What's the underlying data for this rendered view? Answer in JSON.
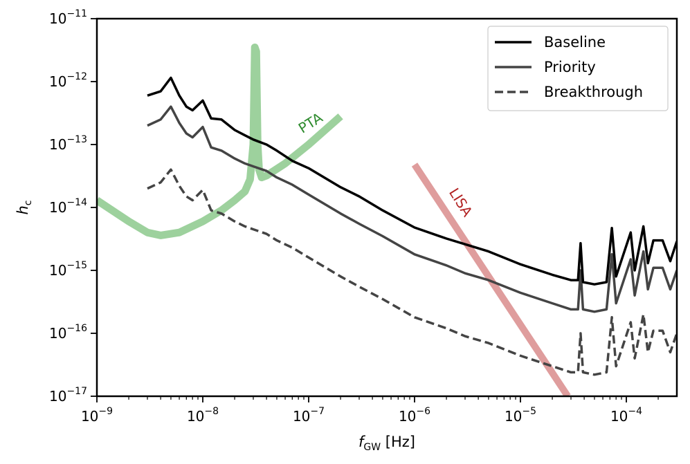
{
  "chart_data": {
    "type": "line",
    "xscale": "log",
    "yscale": "log",
    "xlim": [
      1e-09,
      0.0003
    ],
    "ylim": [
      1e-17,
      1e-11
    ],
    "xlabel": "f_GW [Hz]",
    "xlabel_main": "f",
    "xlabel_sub": "GW",
    "xlabel_unit": " [Hz]",
    "ylabel": "h_c",
    "ylabel_main": "h",
    "ylabel_sub": "c",
    "grid": false,
    "legend_position": "top-right",
    "x_ticks": [
      {
        "base": "10",
        "exp": "−9",
        "value": 1e-09
      },
      {
        "base": "10",
        "exp": "−8",
        "value": 1e-08
      },
      {
        "base": "10",
        "exp": "−7",
        "value": 1e-07
      },
      {
        "base": "10",
        "exp": "−6",
        "value": 1e-06
      },
      {
        "base": "10",
        "exp": "−5",
        "value": 1e-05
      },
      {
        "base": "10",
        "exp": "−4",
        "value": 0.0001
      }
    ],
    "y_ticks": [
      {
        "base": "10",
        "exp": "−11",
        "value": 1e-11
      },
      {
        "base": "10",
        "exp": "−12",
        "value": 1e-12
      },
      {
        "base": "10",
        "exp": "−13",
        "value": 1e-13
      },
      {
        "base": "10",
        "exp": "−14",
        "value": 1e-14
      },
      {
        "base": "10",
        "exp": "−15",
        "value": 1e-15
      },
      {
        "base": "10",
        "exp": "−16",
        "value": 1e-16
      },
      {
        "base": "10",
        "exp": "−17",
        "value": 1e-17
      }
    ],
    "series": [
      {
        "name": "Baseline",
        "color": "#000000",
        "style": "solid",
        "x": [
          3e-09,
          4e-09,
          5e-09,
          6e-09,
          7e-09,
          8e-09,
          1e-08,
          1.2e-08,
          1.5e-08,
          2e-08,
          2.5e-08,
          3e-08,
          4e-08,
          5e-08,
          7e-08,
          1e-07,
          2e-07,
          3e-07,
          5e-07,
          1e-06,
          2e-06,
          3e-06,
          5e-06,
          1e-05,
          2e-05,
          3e-05,
          3.5e-05,
          3.7e-05,
          3.9e-05,
          5e-05,
          6.5e-05,
          7.3e-05,
          8e-05,
          0.00011,
          0.00012,
          0.000145,
          0.00016,
          0.00018,
          0.00022,
          0.00026,
          0.0003
        ],
        "y": [
          6e-13,
          7e-13,
          1.15e-12,
          6e-13,
          4e-13,
          3.5e-13,
          5e-13,
          2.6e-13,
          2.5e-13,
          1.7e-13,
          1.4e-13,
          1.2e-13,
          1e-13,
          8e-14,
          5.5e-14,
          4.2e-14,
          2.1e-14,
          1.5e-14,
          9e-15,
          4.8e-15,
          3.2e-15,
          2.6e-15,
          2e-15,
          1.25e-15,
          8.5e-16,
          7e-16,
          7e-16,
          2.7e-15,
          6.5e-16,
          6e-16,
          6.5e-16,
          4.7e-15,
          8e-16,
          4e-15,
          1e-15,
          5e-15,
          1.3e-15,
          3e-15,
          3e-15,
          1.4e-15,
          2.9e-15
        ]
      },
      {
        "name": "Priority",
        "color": "#444444",
        "style": "solid",
        "x": [
          3e-09,
          4e-09,
          5e-09,
          6e-09,
          7e-09,
          8e-09,
          1e-08,
          1.2e-08,
          1.5e-08,
          2e-08,
          2.5e-08,
          3e-08,
          4e-08,
          5e-08,
          7e-08,
          1e-07,
          2e-07,
          3e-07,
          5e-07,
          1e-06,
          2e-06,
          3e-06,
          5e-06,
          1e-05,
          2e-05,
          3e-05,
          3.5e-05,
          3.7e-05,
          3.9e-05,
          5e-05,
          6.5e-05,
          7.3e-05,
          8e-05,
          0.00011,
          0.00012,
          0.000145,
          0.00016,
          0.00018,
          0.00022,
          0.00026,
          0.0003
        ],
        "y": [
          2e-13,
          2.5e-13,
          4e-13,
          2.2e-13,
          1.5e-13,
          1.3e-13,
          1.9e-13,
          9e-14,
          8e-14,
          6e-14,
          5e-14,
          4.5e-14,
          3.8e-14,
          3e-14,
          2.3e-14,
          1.6e-14,
          8e-15,
          5.5e-15,
          3.5e-15,
          1.8e-15,
          1.2e-15,
          9e-16,
          7e-16,
          4.4e-16,
          3e-16,
          2.4e-16,
          2.4e-16,
          1e-15,
          2.4e-16,
          2.2e-16,
          2.4e-16,
          1.8e-15,
          3e-16,
          1.5e-15,
          4e-16,
          2e-15,
          5e-16,
          1.1e-15,
          1.1e-15,
          5e-16,
          1e-15
        ]
      },
      {
        "name": "Breakthrough",
        "color": "#444444",
        "style": "dashed",
        "x": [
          3e-09,
          4e-09,
          5e-09,
          6e-09,
          7e-09,
          8e-09,
          1e-08,
          1.2e-08,
          1.5e-08,
          2e-08,
          2.5e-08,
          3e-08,
          4e-08,
          5e-08,
          7e-08,
          1e-07,
          2e-07,
          3e-07,
          5e-07,
          1e-06,
          2e-06,
          3e-06,
          5e-06,
          1e-05,
          2e-05,
          3e-05,
          3.5e-05,
          3.7e-05,
          3.9e-05,
          5e-05,
          6.5e-05,
          7.3e-05,
          8e-05,
          0.00011,
          0.00012,
          0.000145,
          0.00016,
          0.00018,
          0.00022,
          0.00026,
          0.0003
        ],
        "y": [
          2e-14,
          2.5e-14,
          4e-14,
          2.2e-14,
          1.5e-14,
          1.3e-14,
          1.9e-14,
          9e-15,
          8e-15,
          6e-15,
          5e-15,
          4.5e-15,
          3.8e-15,
          3e-15,
          2.3e-15,
          1.6e-15,
          8e-16,
          5.5e-16,
          3.5e-16,
          1.8e-16,
          1.2e-16,
          9e-17,
          7e-17,
          4.4e-17,
          3e-17,
          2.4e-17,
          2.4e-17,
          1e-16,
          2.4e-17,
          2.2e-17,
          2.4e-17,
          1.8e-16,
          3e-17,
          1.5e-16,
          4e-17,
          2e-16,
          5e-17,
          1.1e-16,
          1.1e-16,
          5e-17,
          1e-16
        ]
      },
      {
        "name": "PTA",
        "color": "#2e8b2e",
        "line_color": "#8cc98c",
        "style": "thick",
        "x": [
          1e-09,
          2e-09,
          3e-09,
          4e-09,
          6e-09,
          1e-08,
          1.5e-08,
          2e-08,
          2.5e-08,
          2.8e-08,
          3e-08,
          3.1e-08,
          3.2e-08,
          3.3e-08,
          3.4e-08,
          3.6e-08,
          4e-08,
          6e-08,
          1e-07,
          2e-07
        ],
        "y": [
          1.3e-14,
          6e-15,
          4e-15,
          3.6e-15,
          4e-15,
          6e-15,
          9e-15,
          1.3e-14,
          1.8e-14,
          2.8e-14,
          1e-13,
          3.5e-12,
          3e-12,
          1e-13,
          4e-14,
          3e-14,
          3.2e-14,
          5e-14,
          1e-13,
          2.8e-13
        ]
      },
      {
        "name": "LISA",
        "color": "#b22222",
        "line_color": "#d98c8c",
        "style": "thick",
        "x": [
          1e-06,
          2.8e-05
        ],
        "y": [
          4.8e-14,
          1e-17
        ]
      }
    ],
    "legend": [
      {
        "label": "Baseline",
        "color": "#000000",
        "style": "solid"
      },
      {
        "label": "Priority",
        "color": "#444444",
        "style": "solid"
      },
      {
        "label": "Breakthrough",
        "color": "#444444",
        "style": "dashed"
      }
    ],
    "annotations": [
      {
        "text": "PTA",
        "color": "#2e8b2e"
      },
      {
        "text": "LISA",
        "color": "#b22222"
      }
    ]
  }
}
